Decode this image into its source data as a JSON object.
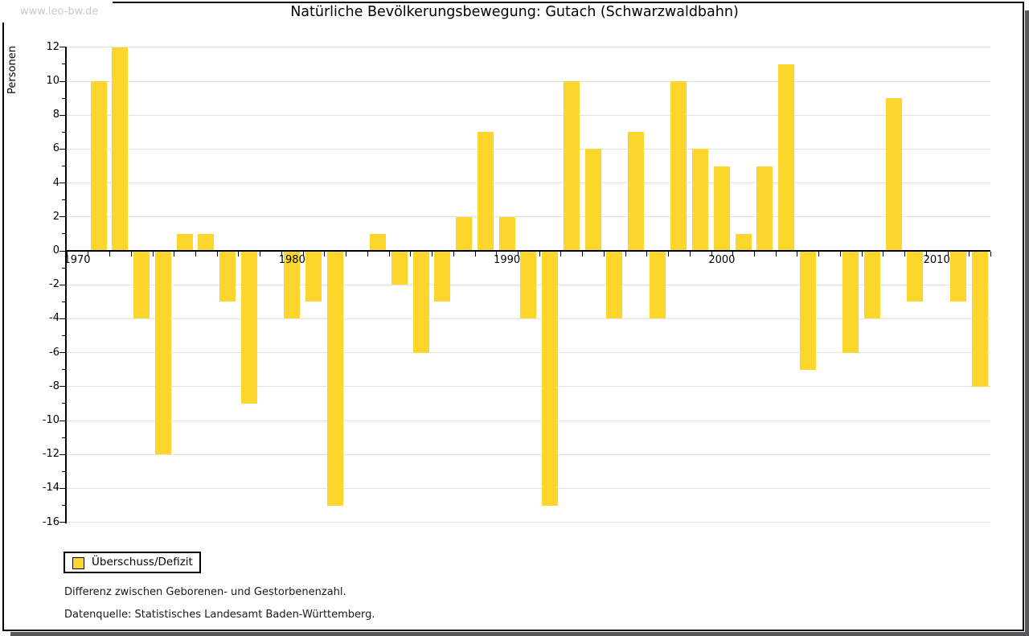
{
  "watermark": "www.leo-bw.de",
  "title": "Natürliche Bevölkerungsbewegung: Gutach (Schwarzwaldbahn)",
  "notes": [
    "Differenz zwischen Geborenen- und Gestorbenenzahl.",
    "Datenquelle: Statistisches Landesamt Baden-Württemberg."
  ],
  "colors": {
    "bar": "#FCD52D",
    "gridline": "#e2e2e2",
    "axis": "#000000"
  },
  "chart_data": {
    "type": "bar",
    "title": "Natürliche Bevölkerungsbewegung: Gutach (Schwarzwaldbahn)",
    "xlabel": "",
    "ylabel": "Personen",
    "grid": true,
    "ylim": [
      -16,
      12
    ],
    "ytick_step": 2,
    "ytick_labels": [
      "12",
      "10",
      "8",
      "6",
      "4",
      "2",
      "0",
      "-2",
      "-4",
      "-6",
      "-8",
      "-10",
      "-12",
      "-14",
      "-16"
    ],
    "xtick_years": [
      1970,
      1980,
      1990,
      2000,
      2010
    ],
    "xtick_labels": [
      "1970",
      "1980",
      "1990",
      "2000",
      "2010"
    ],
    "legend_position": "bottom-left",
    "series": [
      {
        "name": "Überschuss/Defizit",
        "color": "#FCD52D"
      }
    ],
    "x": [
      1970,
      1971,
      1972,
      1973,
      1974,
      1975,
      1976,
      1977,
      1978,
      1979,
      1980,
      1981,
      1982,
      1983,
      1984,
      1985,
      1986,
      1987,
      1988,
      1989,
      1990,
      1991,
      1992,
      1993,
      1994,
      1995,
      1996,
      1997,
      1998,
      1999,
      2000,
      2001,
      2002,
      2003,
      2004,
      2005,
      2006,
      2007,
      2008,
      2009,
      2010,
      2011,
      2012
    ],
    "values": [
      0,
      10,
      12,
      -4,
      -12,
      1,
      1,
      -3,
      -9,
      0,
      -4,
      -3,
      -15,
      0,
      1,
      -2,
      -6,
      -3,
      2,
      7,
      2,
      -4,
      -15,
      10,
      6,
      -4,
      7,
      -4,
      10,
      6,
      5,
      1,
      5,
      11,
      -7,
      0,
      -6,
      -4,
      9,
      -3,
      0,
      -3,
      -8
    ]
  }
}
